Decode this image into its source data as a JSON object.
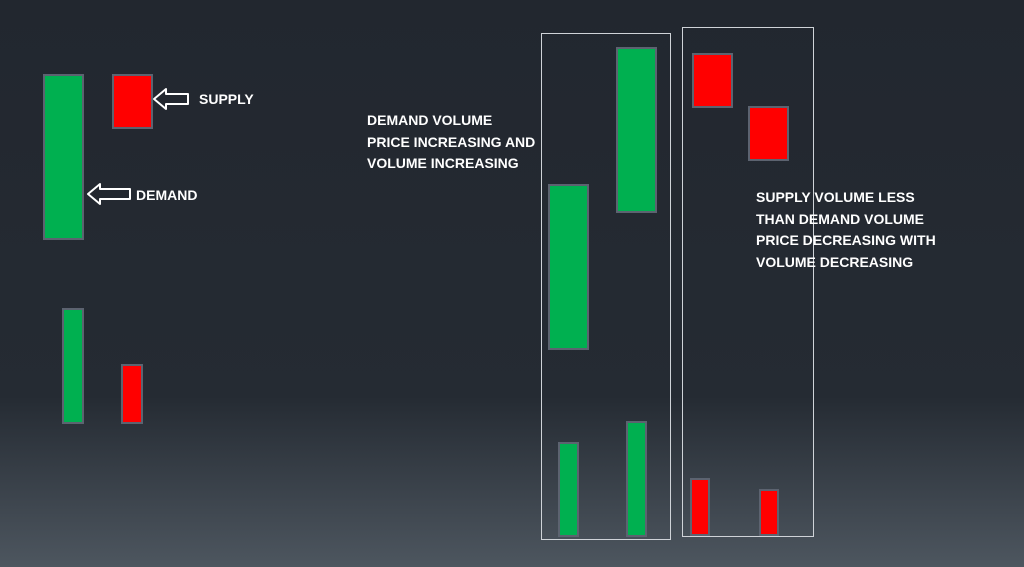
{
  "colors": {
    "demand": "#00b050",
    "supply": "#ff0000",
    "background": "#22272f",
    "text": "#ffffff"
  },
  "legend": {
    "supply_label": "SUPPLY",
    "demand_label": "DEMAND",
    "supply_arrow_icon": "left-arrow-icon",
    "demand_arrow_icon": "left-arrow-icon"
  },
  "demand_box": {
    "caption": [
      "DEMAND VOLUME",
      "PRICE INCREASING AND",
      "VOLUME INCREASING"
    ]
  },
  "supply_box": {
    "caption": [
      "SUPPLY VOLUME LESS",
      "THAN DEMAND VOLUME",
      "PRICE DECREASING WITH",
      "VOLUME DECREASING"
    ]
  }
}
